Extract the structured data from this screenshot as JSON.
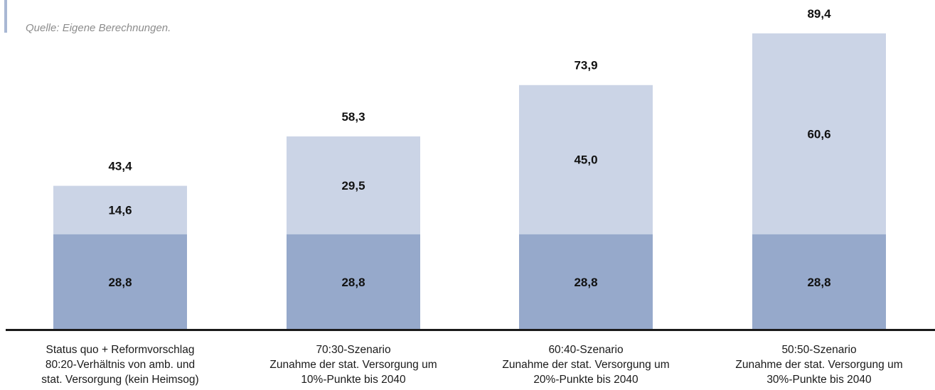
{
  "source": "Quelle: Eigene Berechnungen.",
  "colors": {
    "base": "#96a9cb",
    "increase": "#cbd4e6",
    "axis": "#1a1a1a",
    "text": "#111111"
  },
  "chart_data": {
    "type": "bar",
    "stacked": true,
    "title": "",
    "xlabel": "",
    "ylabel": "",
    "ylim": [
      0,
      89.4
    ],
    "grid": false,
    "categories": [
      [
        "Status quo + Reformvorschlag",
        "80:20-Verhältnis von amb. und",
        "stat. Versorgung (kein Heimsog)"
      ],
      [
        "70:30-Szenario",
        "Zunahme der stat. Versorgung um",
        "10%-Punkte bis 2040"
      ],
      [
        "60:40-Szenario",
        "Zunahme der stat. Versorgung um",
        "20%-Punkte bis 2040"
      ],
      [
        "50:50-Szenario",
        "Zunahme der stat. Versorgung um",
        "30%-Punkte bis 2040"
      ]
    ],
    "series": [
      {
        "values": [
          28.8,
          28.8,
          28.8,
          28.8
        ],
        "labels": [
          "28,8",
          "28,8",
          "28,8",
          "28,8"
        ]
      },
      {
        "values": [
          14.6,
          29.5,
          45.0,
          60.6
        ],
        "labels": [
          "14,6",
          "29,5",
          "45,0",
          "60,6"
        ]
      }
    ],
    "totals": [
      43.4,
      58.3,
      73.9,
      89.4
    ],
    "total_labels": [
      "43,4",
      "58,3",
      "73,9",
      "89,4"
    ]
  }
}
